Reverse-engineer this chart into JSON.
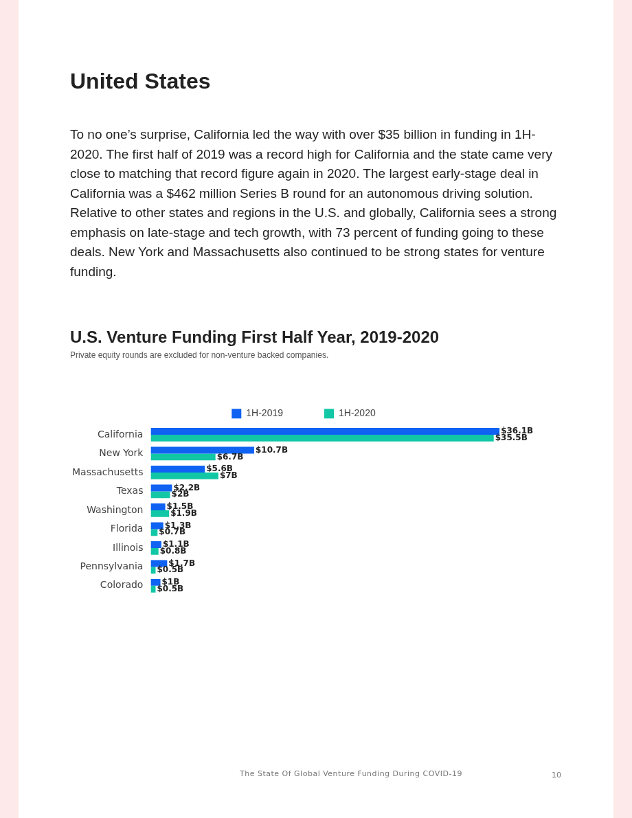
{
  "chart_data": {
    "type": "bar",
    "orientation": "horizontal",
    "title": "U.S. Venture Funding First Half Year, 2019-2020",
    "subtitle": "Private equity rounds are excluded for non-venture backed companies.",
    "legend": "top",
    "categories": [
      "California",
      "New York",
      "Massachusetts",
      "Texas",
      "Washington",
      "Florida",
      "Illinois",
      "Pennsylvania",
      "Colorado"
    ],
    "series": [
      {
        "name": "1H-2019",
        "color": "#0f62f2",
        "values": [
          36.1,
          10.7,
          5.6,
          2.2,
          1.5,
          1.3,
          1.1,
          1.7,
          1
        ],
        "value_labels": [
          "$36.1B",
          "$10.7B",
          "$5.6B",
          "$2.2B",
          "$1.5B",
          "$1.3B",
          "$1.1B",
          "$1.7B",
          "$1B"
        ]
      },
      {
        "name": "1H-2020",
        "color": "#12c7a5",
        "values": [
          35.5,
          6.7,
          7,
          2,
          1.9,
          0.7,
          0.8,
          0.5,
          0.5
        ],
        "value_labels": [
          "$35.5B",
          "$6.7B",
          "$7B",
          "$2B",
          "$1.9B",
          "$0.7B",
          "$0.8B",
          "$0.5B",
          "$0.5B"
        ]
      }
    ],
    "annotations": [
      "United States",
      "To no one’s surprise, California led the way with over $35 billion in funding in 1H-2020. The first half of 2019 was a record high for California and the state came very close to matching that record figure again in 2020. The largest early-stage deal in California was a $462 million Series B round for an autonomous driving solution. Relative to other states and regions in the U.S. and globally, California sees a strong emphasis on late-stage and tech growth, with 73 percent of funding going to these deals. New York and Massachusetts also continued to be strong states for venture funding.",
      "The State Of Global Venture Funding During COVID-19",
      "10"
    ]
  }
}
